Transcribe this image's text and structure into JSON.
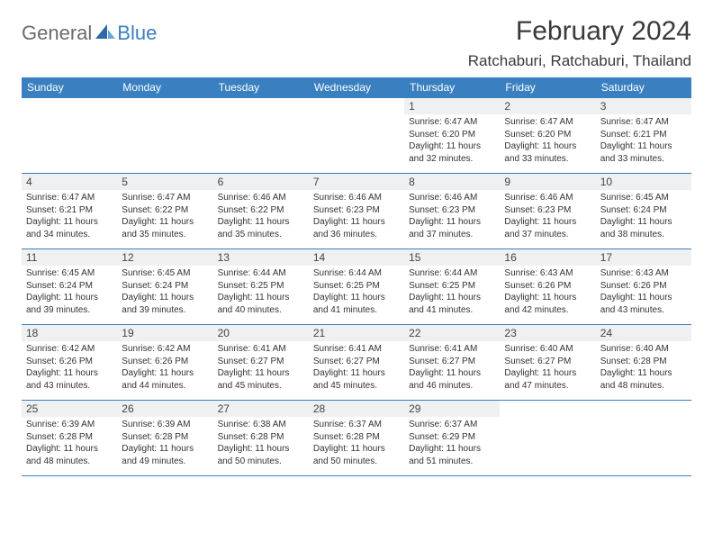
{
  "logo": {
    "general": "General",
    "blue": "Blue"
  },
  "title": "February 2024",
  "location": "Ratchaburi, Ratchaburi, Thailand",
  "colors": {
    "header_bg": "#3a7fc0",
    "header_text": "#ffffff",
    "daynum_bg": "#eef0f1",
    "text": "#333333",
    "border": "#3a7fc0"
  },
  "dow": [
    "Sunday",
    "Monday",
    "Tuesday",
    "Wednesday",
    "Thursday",
    "Friday",
    "Saturday"
  ],
  "weeks": [
    [
      null,
      null,
      null,
      null,
      {
        "n": "1",
        "sr": "Sunrise: 6:47 AM",
        "ss": "Sunset: 6:20 PM",
        "dl": "Daylight: 11 hours and 32 minutes."
      },
      {
        "n": "2",
        "sr": "Sunrise: 6:47 AM",
        "ss": "Sunset: 6:20 PM",
        "dl": "Daylight: 11 hours and 33 minutes."
      },
      {
        "n": "3",
        "sr": "Sunrise: 6:47 AM",
        "ss": "Sunset: 6:21 PM",
        "dl": "Daylight: 11 hours and 33 minutes."
      }
    ],
    [
      {
        "n": "4",
        "sr": "Sunrise: 6:47 AM",
        "ss": "Sunset: 6:21 PM",
        "dl": "Daylight: 11 hours and 34 minutes."
      },
      {
        "n": "5",
        "sr": "Sunrise: 6:47 AM",
        "ss": "Sunset: 6:22 PM",
        "dl": "Daylight: 11 hours and 35 minutes."
      },
      {
        "n": "6",
        "sr": "Sunrise: 6:46 AM",
        "ss": "Sunset: 6:22 PM",
        "dl": "Daylight: 11 hours and 35 minutes."
      },
      {
        "n": "7",
        "sr": "Sunrise: 6:46 AM",
        "ss": "Sunset: 6:23 PM",
        "dl": "Daylight: 11 hours and 36 minutes."
      },
      {
        "n": "8",
        "sr": "Sunrise: 6:46 AM",
        "ss": "Sunset: 6:23 PM",
        "dl": "Daylight: 11 hours and 37 minutes."
      },
      {
        "n": "9",
        "sr": "Sunrise: 6:46 AM",
        "ss": "Sunset: 6:23 PM",
        "dl": "Daylight: 11 hours and 37 minutes."
      },
      {
        "n": "10",
        "sr": "Sunrise: 6:45 AM",
        "ss": "Sunset: 6:24 PM",
        "dl": "Daylight: 11 hours and 38 minutes."
      }
    ],
    [
      {
        "n": "11",
        "sr": "Sunrise: 6:45 AM",
        "ss": "Sunset: 6:24 PM",
        "dl": "Daylight: 11 hours and 39 minutes."
      },
      {
        "n": "12",
        "sr": "Sunrise: 6:45 AM",
        "ss": "Sunset: 6:24 PM",
        "dl": "Daylight: 11 hours and 39 minutes."
      },
      {
        "n": "13",
        "sr": "Sunrise: 6:44 AM",
        "ss": "Sunset: 6:25 PM",
        "dl": "Daylight: 11 hours and 40 minutes."
      },
      {
        "n": "14",
        "sr": "Sunrise: 6:44 AM",
        "ss": "Sunset: 6:25 PM",
        "dl": "Daylight: 11 hours and 41 minutes."
      },
      {
        "n": "15",
        "sr": "Sunrise: 6:44 AM",
        "ss": "Sunset: 6:25 PM",
        "dl": "Daylight: 11 hours and 41 minutes."
      },
      {
        "n": "16",
        "sr": "Sunrise: 6:43 AM",
        "ss": "Sunset: 6:26 PM",
        "dl": "Daylight: 11 hours and 42 minutes."
      },
      {
        "n": "17",
        "sr": "Sunrise: 6:43 AM",
        "ss": "Sunset: 6:26 PM",
        "dl": "Daylight: 11 hours and 43 minutes."
      }
    ],
    [
      {
        "n": "18",
        "sr": "Sunrise: 6:42 AM",
        "ss": "Sunset: 6:26 PM",
        "dl": "Daylight: 11 hours and 43 minutes."
      },
      {
        "n": "19",
        "sr": "Sunrise: 6:42 AM",
        "ss": "Sunset: 6:26 PM",
        "dl": "Daylight: 11 hours and 44 minutes."
      },
      {
        "n": "20",
        "sr": "Sunrise: 6:41 AM",
        "ss": "Sunset: 6:27 PM",
        "dl": "Daylight: 11 hours and 45 minutes."
      },
      {
        "n": "21",
        "sr": "Sunrise: 6:41 AM",
        "ss": "Sunset: 6:27 PM",
        "dl": "Daylight: 11 hours and 45 minutes."
      },
      {
        "n": "22",
        "sr": "Sunrise: 6:41 AM",
        "ss": "Sunset: 6:27 PM",
        "dl": "Daylight: 11 hours and 46 minutes."
      },
      {
        "n": "23",
        "sr": "Sunrise: 6:40 AM",
        "ss": "Sunset: 6:27 PM",
        "dl": "Daylight: 11 hours and 47 minutes."
      },
      {
        "n": "24",
        "sr": "Sunrise: 6:40 AM",
        "ss": "Sunset: 6:28 PM",
        "dl": "Daylight: 11 hours and 48 minutes."
      }
    ],
    [
      {
        "n": "25",
        "sr": "Sunrise: 6:39 AM",
        "ss": "Sunset: 6:28 PM",
        "dl": "Daylight: 11 hours and 48 minutes."
      },
      {
        "n": "26",
        "sr": "Sunrise: 6:39 AM",
        "ss": "Sunset: 6:28 PM",
        "dl": "Daylight: 11 hours and 49 minutes."
      },
      {
        "n": "27",
        "sr": "Sunrise: 6:38 AM",
        "ss": "Sunset: 6:28 PM",
        "dl": "Daylight: 11 hours and 50 minutes."
      },
      {
        "n": "28",
        "sr": "Sunrise: 6:37 AM",
        "ss": "Sunset: 6:28 PM",
        "dl": "Daylight: 11 hours and 50 minutes."
      },
      {
        "n": "29",
        "sr": "Sunrise: 6:37 AM",
        "ss": "Sunset: 6:29 PM",
        "dl": "Daylight: 11 hours and 51 minutes."
      },
      null,
      null
    ]
  ]
}
